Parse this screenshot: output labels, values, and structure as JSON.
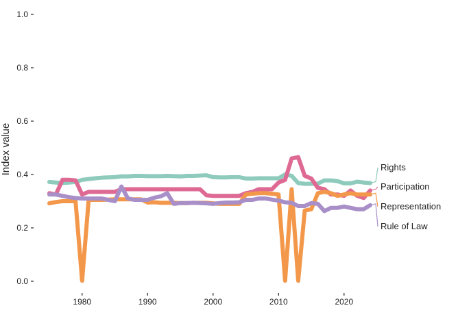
{
  "chart_data": {
    "type": "line",
    "title": "",
    "xlabel": "",
    "ylabel": "Index value",
    "xlim": [
      1975,
      2024
    ],
    "ylim": [
      0,
      1
    ],
    "x_ticks": [
      1980,
      1990,
      2000,
      2010,
      2020
    ],
    "y_ticks": [
      "0.0",
      "0.2",
      "0.4",
      "0.6",
      "0.8",
      "1.0"
    ],
    "grid": false,
    "legend": "direct labels at right end of lines",
    "x": [
      1975,
      1976,
      1977,
      1978,
      1979,
      1980,
      1981,
      1982,
      1983,
      1984,
      1985,
      1986,
      1987,
      1988,
      1989,
      1990,
      1991,
      1992,
      1993,
      1994,
      1995,
      1996,
      1997,
      1998,
      1999,
      2000,
      2001,
      2002,
      2003,
      2004,
      2005,
      2006,
      2007,
      2008,
      2009,
      2010,
      2011,
      2012,
      2013,
      2014,
      2015,
      2016,
      2017,
      2018,
      2019,
      2020,
      2021,
      2022,
      2023,
      2024
    ],
    "series": [
      {
        "name": "Rights",
        "color": "#8ecbbd",
        "values": [
          0.372,
          0.37,
          0.368,
          0.37,
          0.372,
          0.38,
          0.383,
          0.386,
          0.388,
          0.389,
          0.39,
          0.393,
          0.393,
          0.395,
          0.395,
          0.394,
          0.394,
          0.394,
          0.395,
          0.394,
          0.393,
          0.395,
          0.395,
          0.396,
          0.397,
          0.39,
          0.389,
          0.389,
          0.39,
          0.39,
          0.385,
          0.385,
          0.386,
          0.386,
          0.386,
          0.386,
          0.4,
          0.395,
          0.368,
          0.365,
          0.365,
          0.366,
          0.378,
          0.378,
          0.375,
          0.367,
          0.367,
          0.373,
          0.37,
          0.368
        ]
      },
      {
        "name": "Participation",
        "color": "#de6a94",
        "values": [
          0.33,
          0.325,
          0.38,
          0.38,
          0.378,
          0.325,
          0.335,
          0.335,
          0.335,
          0.335,
          0.335,
          0.345,
          0.345,
          0.345,
          0.345,
          0.345,
          0.345,
          0.345,
          0.345,
          0.345,
          0.345,
          0.345,
          0.345,
          0.345,
          0.322,
          0.32,
          0.32,
          0.32,
          0.32,
          0.32,
          0.33,
          0.335,
          0.345,
          0.345,
          0.345,
          0.37,
          0.38,
          0.46,
          0.465,
          0.395,
          0.385,
          0.35,
          0.345,
          0.325,
          0.325,
          0.32,
          0.34,
          0.32,
          0.312,
          0.34
        ]
      },
      {
        "name": "Representation",
        "color": "#f3984b",
        "values": [
          0.292,
          0.297,
          0.3,
          0.3,
          0.3,
          0.002,
          0.305,
          0.305,
          0.305,
          0.306,
          0.307,
          0.307,
          0.307,
          0.307,
          0.307,
          0.295,
          0.296,
          0.294,
          0.294,
          0.294,
          0.293,
          0.293,
          0.294,
          0.294,
          0.294,
          0.292,
          0.29,
          0.29,
          0.29,
          0.29,
          0.325,
          0.328,
          0.33,
          0.33,
          0.328,
          0.325,
          0.002,
          0.345,
          0.002,
          0.265,
          0.27,
          0.33,
          0.335,
          0.33,
          0.32,
          0.325,
          0.33,
          0.325,
          0.325,
          0.325
        ]
      },
      {
        "name": "Rule of Law",
        "color": "#a88fc8",
        "values": [
          0.325,
          0.325,
          0.32,
          0.315,
          0.312,
          0.31,
          0.31,
          0.31,
          0.31,
          0.305,
          0.3,
          0.355,
          0.31,
          0.305,
          0.305,
          0.305,
          0.313,
          0.318,
          0.33,
          0.29,
          0.293,
          0.293,
          0.294,
          0.293,
          0.292,
          0.29,
          0.293,
          0.295,
          0.295,
          0.296,
          0.305,
          0.305,
          0.31,
          0.31,
          0.306,
          0.302,
          0.296,
          0.294,
          0.282,
          0.282,
          0.293,
          0.29,
          0.263,
          0.275,
          0.275,
          0.28,
          0.275,
          0.27,
          0.27,
          0.285
        ]
      }
    ]
  }
}
